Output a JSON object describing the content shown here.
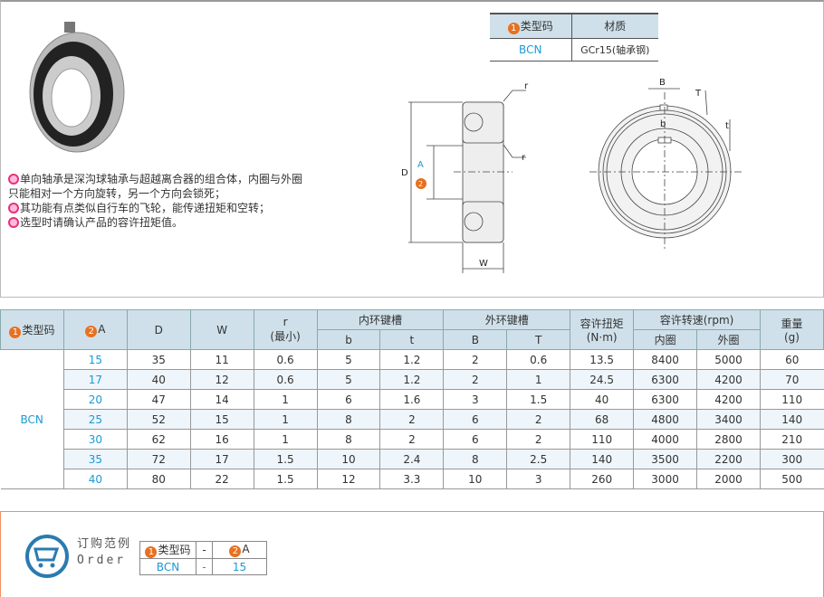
{
  "material_table": {
    "headers": [
      "类型码",
      "材质"
    ],
    "header_num": "1",
    "row": [
      "BCN",
      "GCr15(轴承钢)"
    ]
  },
  "description": [
    "单向轴承是深沟球轴承与超越离合器的组合体，内圈与外圈只能相对一个方向旋转，另一个方向会锁死；",
    "其功能有点类似自行车的飞轮，能传递扭矩和空转；",
    "选型时请确认产品的容许扭矩值。"
  ],
  "drawing_labels": {
    "r1": "r",
    "r2": "r",
    "D": "D",
    "A": "A",
    "A_num": "2",
    "W": "W",
    "B": "B",
    "T": "T",
    "b": "b",
    "t": "t"
  },
  "spec_table": {
    "h_type": "类型码",
    "h_type_num": "1",
    "h_A": "A",
    "h_A_num": "2",
    "h_D": "D",
    "h_W": "W",
    "h_r": "r",
    "h_r_sub": "(最小)",
    "h_inner": "内环键槽",
    "h_b": "b",
    "h_t": "t",
    "h_outer": "外环键槽",
    "h_B": "B",
    "h_T": "T",
    "h_torque": "容许扭矩",
    "h_torque_unit": "(N·m)",
    "h_speed": "容许转速(rpm)",
    "h_speed_in": "内圈",
    "h_speed_out": "外圈",
    "h_weight": "重量",
    "h_weight_unit": "(g)",
    "type": "BCN",
    "rows": [
      [
        "15",
        "35",
        "11",
        "0.6",
        "5",
        "1.2",
        "2",
        "0.6",
        "13.5",
        "8400",
        "5000",
        "60"
      ],
      [
        "17",
        "40",
        "12",
        "0.6",
        "5",
        "1.2",
        "2",
        "1",
        "24.5",
        "6300",
        "4200",
        "70"
      ],
      [
        "20",
        "47",
        "14",
        "1",
        "6",
        "1.6",
        "3",
        "1.5",
        "40",
        "6300",
        "4200",
        "110"
      ],
      [
        "25",
        "52",
        "15",
        "1",
        "8",
        "2",
        "6",
        "2",
        "68",
        "4800",
        "3400",
        "140"
      ],
      [
        "30",
        "62",
        "16",
        "1",
        "8",
        "2",
        "6",
        "2",
        "110",
        "4000",
        "2800",
        "210"
      ],
      [
        "35",
        "72",
        "17",
        "1.5",
        "10",
        "2.4",
        "8",
        "2.5",
        "140",
        "3500",
        "2200",
        "300"
      ],
      [
        "40",
        "80",
        "22",
        "1.5",
        "12",
        "3.3",
        "10",
        "3",
        "260",
        "3000",
        "2000",
        "500"
      ]
    ]
  },
  "order": {
    "title": "订购范例",
    "subtitle": "Order",
    "h1": "类型码",
    "h1_num": "1",
    "sep": "-",
    "h2": "A",
    "h2_num": "2",
    "v1": "BCN",
    "v2": "15"
  },
  "colors": {
    "accent_blue": "#1a9ad6",
    "header_bg": "#cfe0ea",
    "order_border": "#f29060",
    "badge_orange": "#e8701f"
  }
}
